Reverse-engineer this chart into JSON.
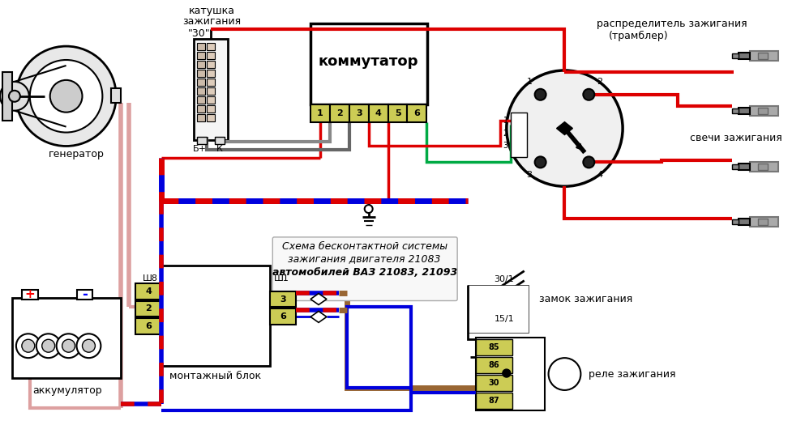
{
  "bg_color": "#ffffff",
  "fig_w": 9.93,
  "fig_h": 5.46,
  "dpi": 100,
  "labels": {
    "katushka1": "катушка",
    "katushka2": "зажигания",
    "katushka3": "\"30\"",
    "kommutator": "коммутатор",
    "generator": "генератор",
    "raspredelitel1": "распределитель зажигания",
    "raspredelitel2": "(трамблер)",
    "svechi": "свечи зажигания",
    "akkum": "аккумулятор",
    "montazh": "монтажный блок",
    "sh8": "Ш8",
    "sh1": "Ш1",
    "zamok": "замок зажигания",
    "rele": "реле зажигания",
    "schema1": "Схема бесконтактной системы",
    "schema2": "зажигания двигателя 21083",
    "schema3": "автомобилей ВАЗ 21083, 21093",
    "bplus": "Б+",
    "k": "К",
    "num30_1": "30/1",
    "num15_1": "15/1"
  },
  "colors": {
    "red": "#cc0000",
    "blue": "#0000cc",
    "pink": "#dda090",
    "black": "#000000",
    "white": "#ffffff",
    "gray": "#888888",
    "yellow_green": "#cccc55",
    "brown": "#996633",
    "wire_red": "#dd0000",
    "wire_blue": "#0000dd",
    "wire_pink": "#dda0a0",
    "green_wire": "#00aa44",
    "light_gray": "#cccccc",
    "coil_fill": "#f0f0f0",
    "gen_fill": "#e8e8e8"
  }
}
